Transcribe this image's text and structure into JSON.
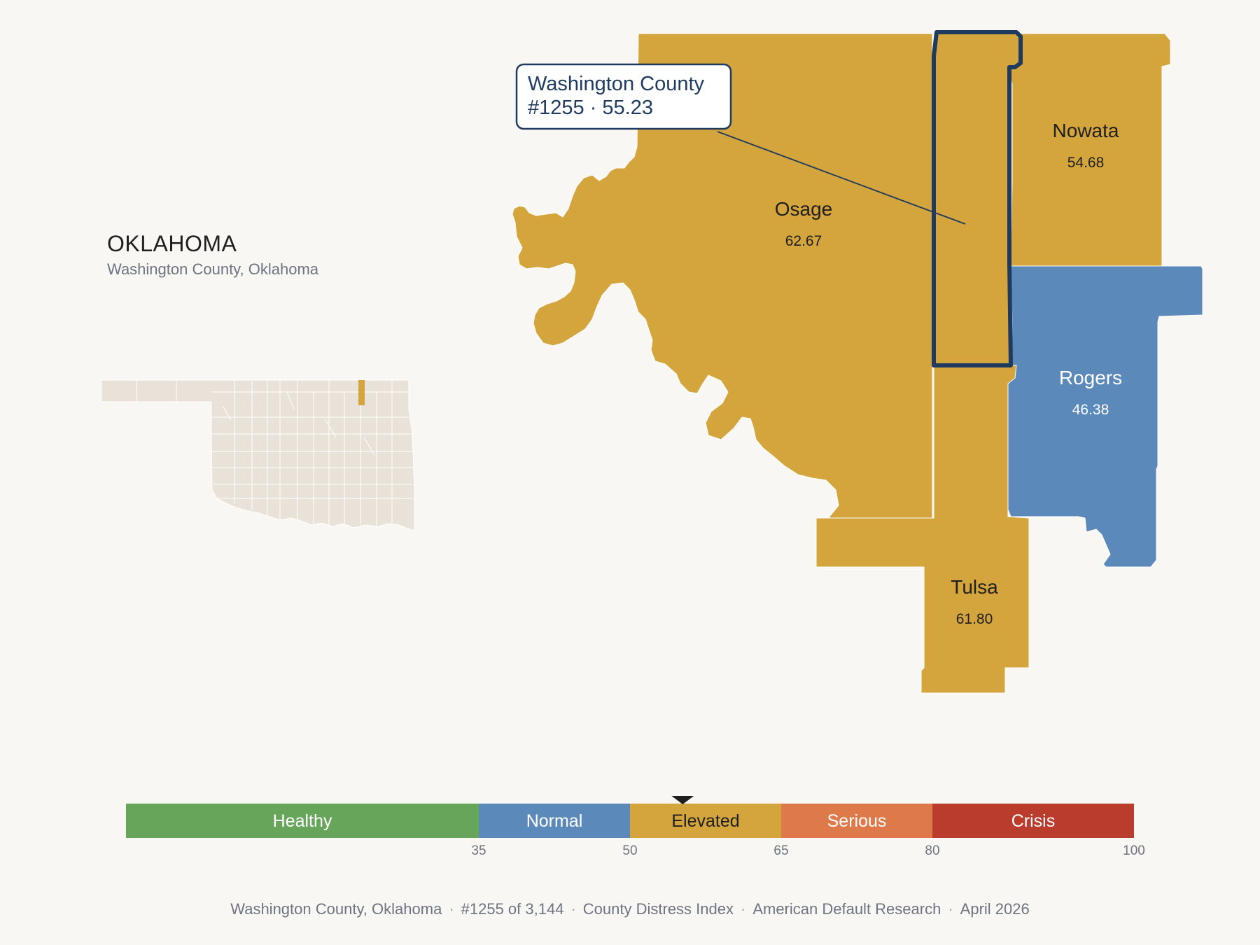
{
  "header": {
    "state": "OKLAHOMA",
    "subtitle": "Washington County, Oklahoma"
  },
  "callout": {
    "line1": "Washington County",
    "line2": "#1255 · 55.23",
    "rank": 1255,
    "score": 55.23
  },
  "counties": [
    {
      "name": "Osage",
      "value": "62.67",
      "category": "Elevated"
    },
    {
      "name": "Nowata",
      "value": "54.68",
      "category": "Elevated"
    },
    {
      "name": "Rogers",
      "value": "46.38",
      "category": "Normal"
    },
    {
      "name": "Tulsa",
      "value": "61.80",
      "category": "Elevated"
    },
    {
      "name": "Washington",
      "value": "55.23",
      "category": "Elevated",
      "highlighted": true
    }
  ],
  "scale": {
    "marker_value": 55.23,
    "min": 0,
    "max": 100,
    "bands": [
      {
        "label": "Healthy",
        "from": 0,
        "to": 35,
        "color": "#66a55a"
      },
      {
        "label": "Normal",
        "from": 35,
        "to": 50,
        "color": "#5b8aba"
      },
      {
        "label": "Elevated",
        "from": 50,
        "to": 65,
        "color": "#d4a53c"
      },
      {
        "label": "Serious",
        "from": 65,
        "to": 80,
        "color": "#de7a4a"
      },
      {
        "label": "Crisis",
        "from": 80,
        "to": 100,
        "color": "#b93c2d"
      }
    ],
    "ticks": [
      "35",
      "50",
      "65",
      "80",
      "100"
    ]
  },
  "footer": {
    "location": "Washington County, Oklahoma",
    "rank": "#1255 of 3,144",
    "index": "County Distress Index",
    "source": "American Default Research",
    "date": "April 2026"
  },
  "colors": {
    "background": "#f9f7f4",
    "elevated": "#d4a53c",
    "normal": "#5b8aba",
    "highlight_outline": "#1e3a5f",
    "inset_fill": "#e8e2d8"
  }
}
